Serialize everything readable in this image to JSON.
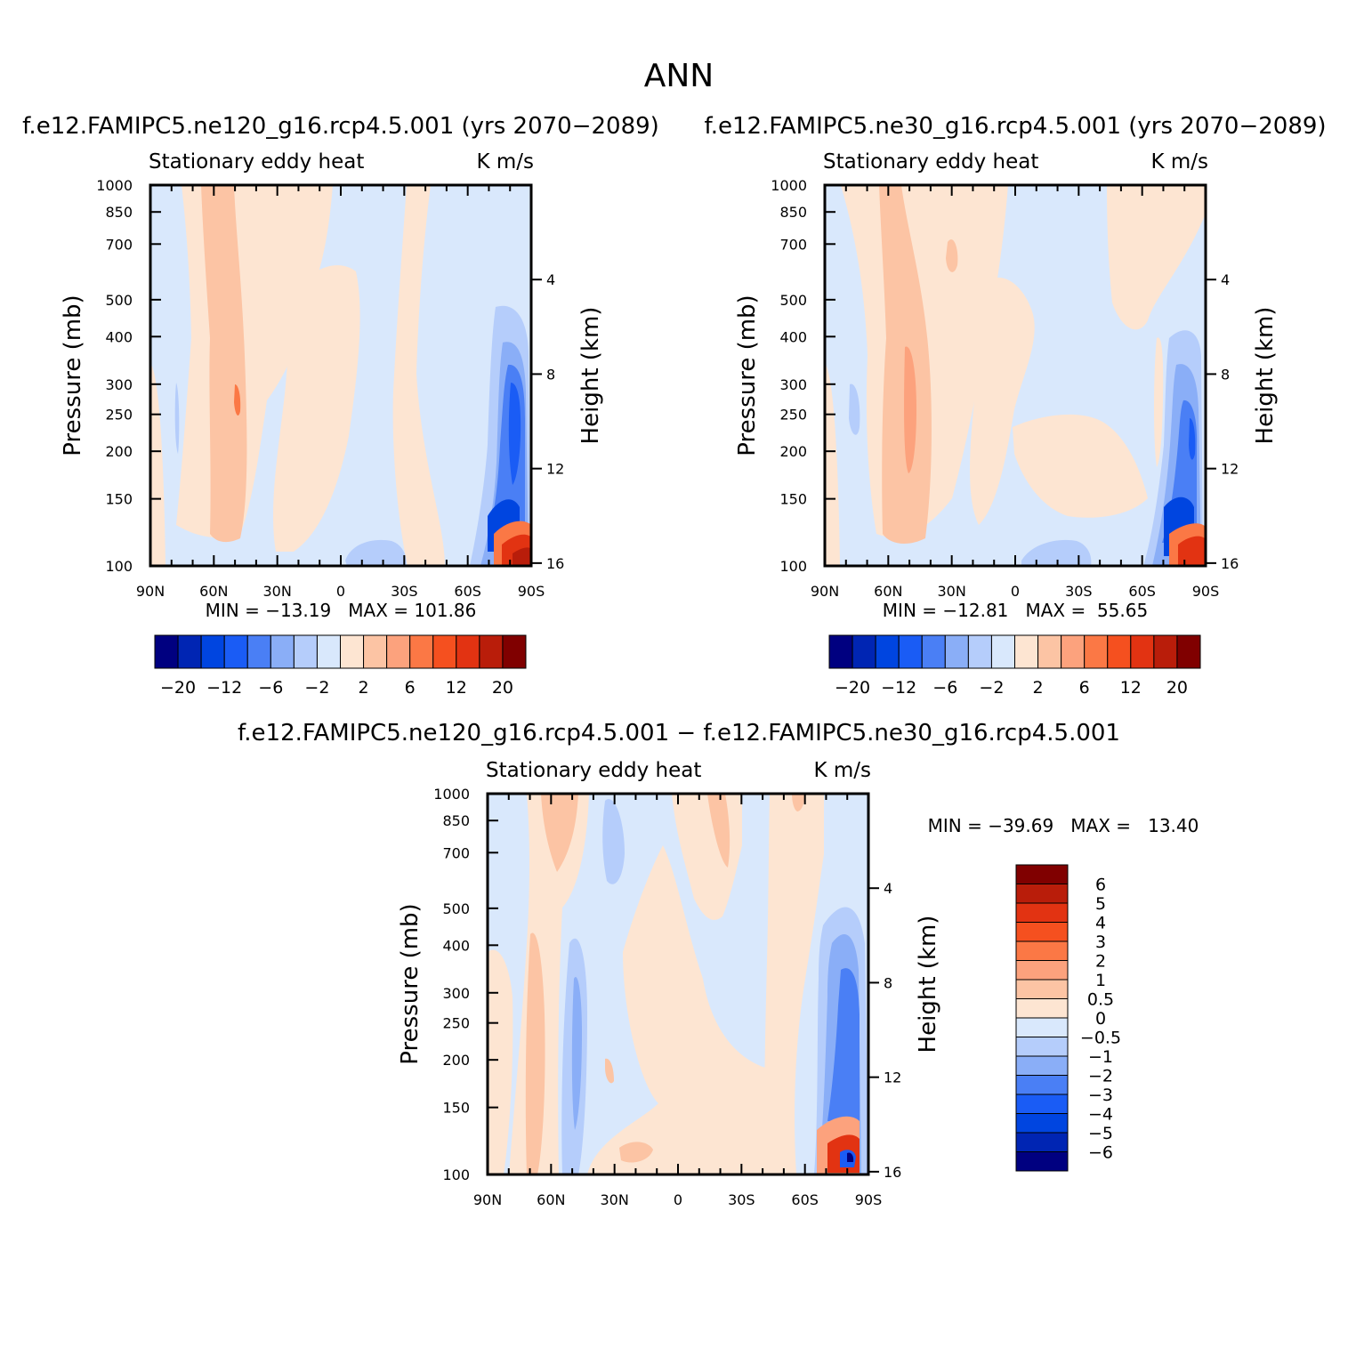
{
  "page_title": "ANN",
  "chart_data": [
    {
      "type": "heatmap",
      "title": "f.e12.FAMIPC5.ne120_g16.rcp4.5.001 (yrs 2070−2089)",
      "subtitle_left": "Stationary eddy heat",
      "subtitle_right": "K m/s",
      "ylabel": "Pressure (mb)",
      "ylabel_right": "Height (km)",
      "x_tick_labels": [
        "90N",
        "60N",
        "30N",
        "0",
        "30S",
        "60S",
        "90S"
      ],
      "y_tick_labels": [
        "100",
        "150",
        "200",
        "250",
        "300",
        "400",
        "500",
        "700",
        "850",
        "1000"
      ],
      "y_ticks": [
        100,
        150,
        200,
        250,
        300,
        400,
        500,
        700,
        850,
        1000
      ],
      "height_tick_labels": [
        "16",
        "12",
        "8",
        "4"
      ],
      "height_ticks_km": [
        16,
        12,
        8,
        4
      ],
      "xlim": [
        90,
        -90
      ],
      "ylim": [
        1000,
        100
      ],
      "log_y": true,
      "min_max": "MIN = −13.19   MAX = 101.86",
      "colorbar": {
        "orientation": "horizontal",
        "levels": [
          -20,
          -16,
          -12,
          -8,
          -6,
          -4,
          -2,
          0,
          2,
          4,
          6,
          8,
          12,
          16,
          20
        ],
        "tick_labels": [
          "−20",
          "−12",
          "−6",
          "−2",
          "2",
          "6",
          "12",
          "20"
        ]
      }
    },
    {
      "type": "heatmap",
      "title": "f.e12.FAMIPC5.ne30_g16.rcp4.5.001 (yrs 2070−2089)",
      "subtitle_left": "Stationary eddy heat",
      "subtitle_right": "K m/s",
      "ylabel": "Pressure (mb)",
      "ylabel_right": "Height (km)",
      "x_tick_labels": [
        "90N",
        "60N",
        "30N",
        "0",
        "30S",
        "60S",
        "90S"
      ],
      "y_tick_labels": [
        "100",
        "150",
        "200",
        "250",
        "300",
        "400",
        "500",
        "700",
        "850",
        "1000"
      ],
      "y_ticks": [
        100,
        150,
        200,
        250,
        300,
        400,
        500,
        700,
        850,
        1000
      ],
      "height_tick_labels": [
        "16",
        "12",
        "8",
        "4"
      ],
      "height_ticks_km": [
        16,
        12,
        8,
        4
      ],
      "xlim": [
        90,
        -90
      ],
      "ylim": [
        1000,
        100
      ],
      "log_y": true,
      "min_max": "MIN = −12.81   MAX =  55.65",
      "colorbar": {
        "orientation": "horizontal",
        "levels": [
          -20,
          -16,
          -12,
          -8,
          -6,
          -4,
          -2,
          0,
          2,
          4,
          6,
          8,
          12,
          16,
          20
        ],
        "tick_labels": [
          "−20",
          "−12",
          "−6",
          "−2",
          "2",
          "6",
          "12",
          "20"
        ]
      }
    },
    {
      "type": "heatmap",
      "title": "f.e12.FAMIPC5.ne120_g16.rcp4.5.001 − f.e12.FAMIPC5.ne30_g16.rcp4.5.001",
      "subtitle_left": "Stationary eddy heat",
      "subtitle_right": "K m/s",
      "ylabel": "Pressure (mb)",
      "ylabel_right": "Height (km)",
      "x_tick_labels": [
        "90N",
        "60N",
        "30N",
        "0",
        "30S",
        "60S",
        "90S"
      ],
      "y_tick_labels": [
        "100",
        "150",
        "200",
        "250",
        "300",
        "400",
        "500",
        "700",
        "850",
        "1000"
      ],
      "y_ticks": [
        100,
        150,
        200,
        250,
        300,
        400,
        500,
        700,
        850,
        1000
      ],
      "height_tick_labels": [
        "16",
        "12",
        "8",
        "4"
      ],
      "height_ticks_km": [
        16,
        12,
        8,
        4
      ],
      "xlim": [
        90,
        -90
      ],
      "ylim": [
        1000,
        100
      ],
      "log_y": true,
      "min_max": "MIN = −39.69   MAX =   13.40",
      "colorbar": {
        "orientation": "vertical",
        "levels": [
          -6,
          -5,
          -4,
          -3,
          -2,
          -1,
          -0.5,
          0,
          0.5,
          1,
          2,
          3,
          4,
          5,
          6
        ],
        "tick_labels": [
          "6",
          "5",
          "4",
          "3",
          "2",
          "1",
          "0.5",
          "0",
          "−0.5",
          "−1",
          "−2",
          "−3",
          "−4",
          "−5",
          "−6"
        ]
      }
    }
  ],
  "colors": {
    "scale": [
      "#000080",
      "#0025b3",
      "#0045e0",
      "#1a5cf5",
      "#4a7ff5",
      "#8aaef7",
      "#b5cdfb",
      "#d9e8fc",
      "#fde5d2",
      "#fcc4a4",
      "#fca27d",
      "#fb7845",
      "#f5501f",
      "#e23312",
      "#b91d0a",
      "#800000"
    ]
  }
}
